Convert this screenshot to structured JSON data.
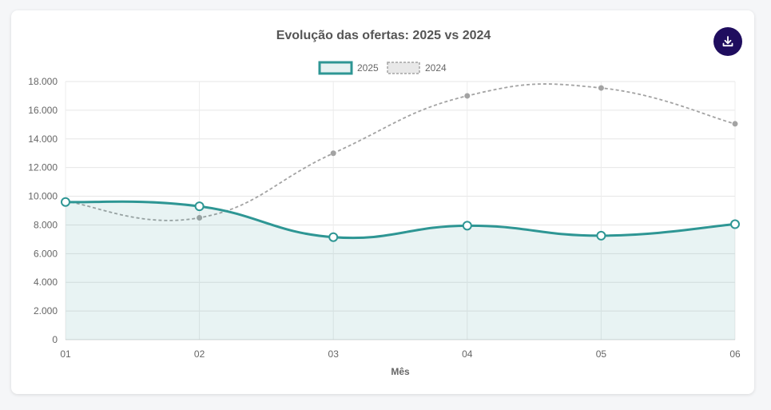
{
  "chart_data": {
    "type": "line",
    "title": "Evolução das ofertas: 2025 vs 2024",
    "xlabel": "Mês",
    "ylabel": "",
    "categories": [
      "01",
      "02",
      "03",
      "04",
      "05",
      "06"
    ],
    "y_ticks": [
      "0",
      "2.000",
      "4.000",
      "6.000",
      "8.000",
      "10.000",
      "12.000",
      "14.000",
      "16.000",
      "18.000"
    ],
    "ylim": [
      0,
      18000
    ],
    "grid": true,
    "legend_position": "top",
    "series": [
      {
        "name": "2025",
        "values": [
          9600,
          9300,
          7150,
          7950,
          7250,
          8050
        ],
        "color": "#2e9694",
        "fill": "rgba(46,150,148,0.11)",
        "style": "solid"
      },
      {
        "name": "2024",
        "values": [
          9650,
          8500,
          13000,
          17000,
          17550,
          15050
        ],
        "color": "#a3a3a3",
        "style": "dashed"
      }
    ]
  },
  "actions": {
    "download_icon": "download-icon"
  }
}
